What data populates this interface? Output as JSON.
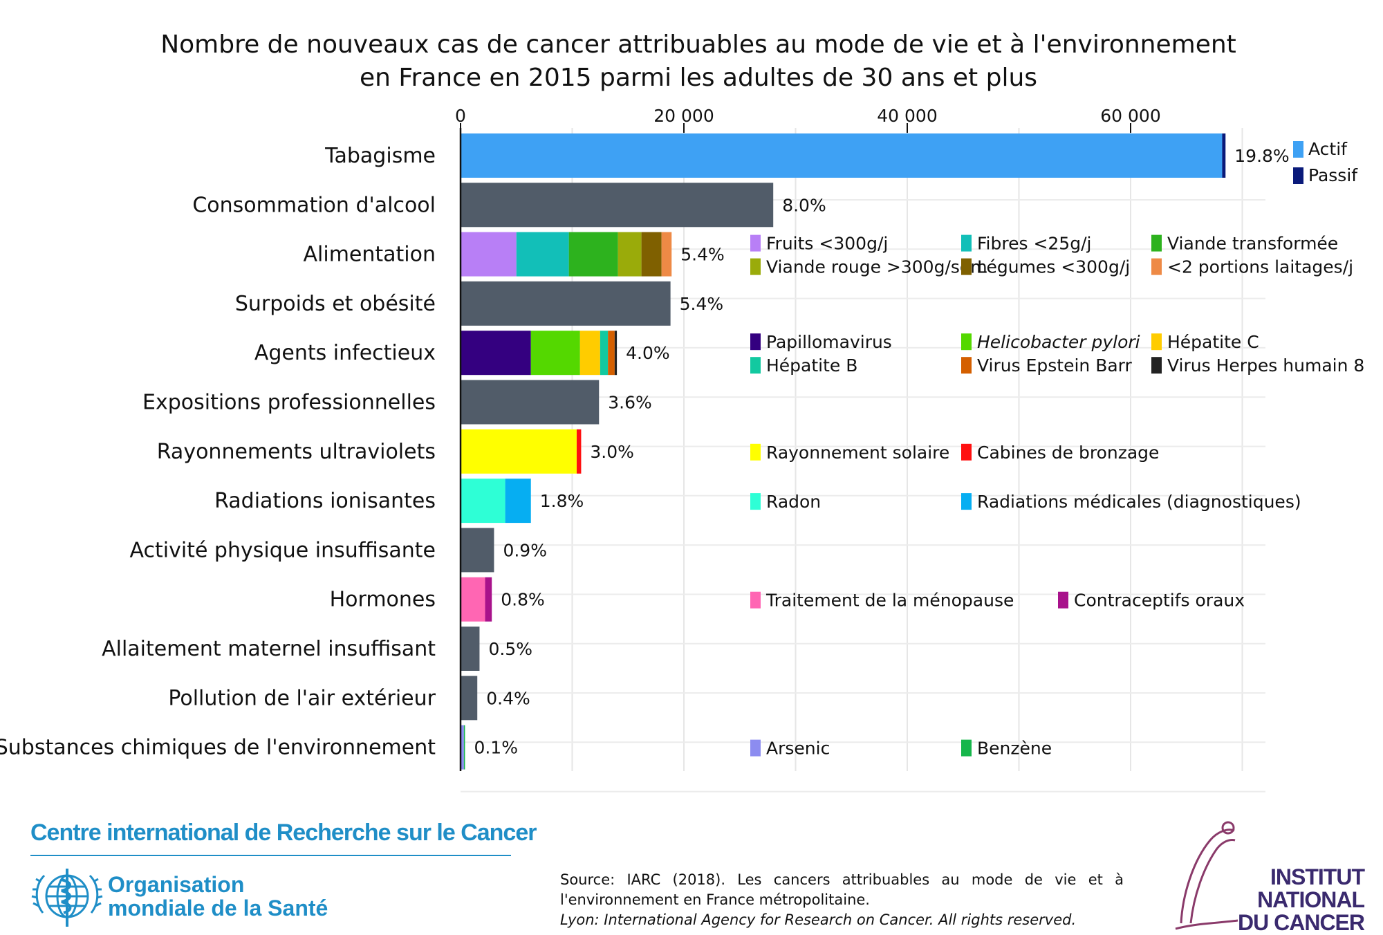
{
  "chart_data": {
    "type": "bar",
    "orientation": "horizontal",
    "stacked": true,
    "title": [
      "Nombre de nouveaux cas de cancer attribuables au mode de vie et à l'environnement",
      "en France en 2015 parmi les adultes de 30 ans et plus"
    ],
    "x_axis": {
      "position": "top",
      "range": [
        0,
        72000
      ],
      "ticks": [
        0,
        20000,
        40000,
        60000
      ],
      "tick_labels": [
        "0",
        "20 000",
        "40 000",
        "60 000"
      ],
      "grid": true
    },
    "categories": [
      {
        "label": "Tabagisme",
        "percent_label": "19.8%",
        "segments": [
          {
            "name": "Actif",
            "value": 68200,
            "color": "#3ea1f4"
          },
          {
            "name": "Passif",
            "value": 300,
            "color": "#0a1a7a"
          }
        ],
        "legend": {
          "placement": "right",
          "columns": 1,
          "items": [
            {
              "name": "Actif",
              "color": "#3ea1f4"
            },
            {
              "name": "Passif",
              "color": "#0a1a7a"
            }
          ]
        }
      },
      {
        "label": "Consommation d'alcool",
        "percent_label": "8.0%",
        "segments": [
          {
            "name": "",
            "value": 28000,
            "color": "#515c69"
          }
        ]
      },
      {
        "label": "Alimentation",
        "percent_label": "5.4%",
        "segments": [
          {
            "name": "Fruits <300g/j",
            "value": 5000,
            "color": "#b87ff6"
          },
          {
            "name": "Fibres <25g/j",
            "value": 4700,
            "color": "#12bfb8"
          },
          {
            "name": "Viande transformée",
            "value": 4400,
            "color": "#2db21e"
          },
          {
            "name": "Viande rouge >300g/sem",
            "value": 2100,
            "color": "#9aab0a"
          },
          {
            "name": "Légumes <300g/j",
            "value": 1800,
            "color": "#7f6000"
          },
          {
            "name": "<2 portions laitages/j",
            "value": 900,
            "color": "#ee8a46"
          }
        ],
        "legend": {
          "placement": "right",
          "columns": 3,
          "items": [
            {
              "name": "Fruits <300g/j",
              "color": "#b87ff6"
            },
            {
              "name": "Fibres <25g/j",
              "color": "#12bfb8"
            },
            {
              "name": "Viande transformée",
              "color": "#2db21e"
            },
            {
              "name": "Viande rouge >300g/sem",
              "color": "#9aab0a"
            },
            {
              "name": "Légumes <300g/j",
              "color": "#7f6000"
            },
            {
              "name": "<2 portions laitages/j",
              "color": "#ee8a46"
            }
          ]
        }
      },
      {
        "label": "Surpoids et obésité",
        "percent_label": "5.4%",
        "segments": [
          {
            "name": "",
            "value": 18800,
            "color": "#515c69"
          }
        ]
      },
      {
        "label": "Agents infectieux",
        "percent_label": "4.0%",
        "segments": [
          {
            "name": "Papillomavirus",
            "value": 6300,
            "color": "#340080"
          },
          {
            "name": "Helicobacter pylori",
            "value": 4400,
            "color": "#54d800"
          },
          {
            "name": "Hépatite C",
            "value": 1800,
            "color": "#ffcc00"
          },
          {
            "name": "Hépatite B",
            "value": 700,
            "color": "#12c9a0"
          },
          {
            "name": "Virus Epstein Barr",
            "value": 600,
            "color": "#d45f00"
          },
          {
            "name": "Virus Herpes humain 8",
            "value": 200,
            "color": "#222222"
          }
        ],
        "legend": {
          "placement": "right",
          "columns": 3,
          "items": [
            {
              "name": "Papillomavirus",
              "color": "#340080"
            },
            {
              "name": "Helicobacter pylori",
              "color": "#54d800",
              "italic": true
            },
            {
              "name": "Hépatite C",
              "color": "#ffcc00"
            },
            {
              "name": "Hépatite B",
              "color": "#12c9a0"
            },
            {
              "name": "Virus Epstein Barr",
              "color": "#d45f00"
            },
            {
              "name": "Virus Herpes humain 8",
              "color": "#222222"
            }
          ]
        }
      },
      {
        "label": "Expositions professionnelles",
        "percent_label": "3.6%",
        "segments": [
          {
            "name": "",
            "value": 12400,
            "color": "#515c69"
          }
        ]
      },
      {
        "label": "Rayonnements ultraviolets",
        "percent_label": "3.0%",
        "segments": [
          {
            "name": "Rayonnement solaire",
            "value": 10400,
            "color": "#ffff00"
          },
          {
            "name": "Cabines de bronzage",
            "value": 400,
            "color": "#ff1010"
          }
        ],
        "legend": {
          "placement": "right",
          "columns": 2,
          "items": [
            {
              "name": "Rayonnement solaire",
              "color": "#ffff00"
            },
            {
              "name": "Cabines de bronzage",
              "color": "#ff1010"
            }
          ]
        }
      },
      {
        "label": "Radiations ionisantes",
        "percent_label": "1.8%",
        "segments": [
          {
            "name": "Radon",
            "value": 4000,
            "color": "#2effd6"
          },
          {
            "name": "Radiations médicales (diagnostiques)",
            "value": 2300,
            "color": "#06aef2"
          }
        ],
        "legend": {
          "placement": "right",
          "columns": 2,
          "items": [
            {
              "name": "Radon",
              "color": "#2effd6"
            },
            {
              "name": "Radiations médicales (diagnostiques)",
              "color": "#06aef2"
            }
          ]
        }
      },
      {
        "label": "Activité physique insuffisante",
        "percent_label": "0.9%",
        "segments": [
          {
            "name": "",
            "value": 3000,
            "color": "#515c69"
          }
        ]
      },
      {
        "label": "Hormones",
        "percent_label": "0.8%",
        "segments": [
          {
            "name": "Traitement de la ménopause",
            "value": 2200,
            "color": "#ff66b3"
          },
          {
            "name": "Contraceptifs oraux",
            "value": 600,
            "color": "#a8128b"
          }
        ],
        "legend": {
          "placement": "right",
          "columns": 2,
          "items": [
            {
              "name": "Traitement de la ménopause",
              "color": "#ff66b3"
            },
            {
              "name": "Contraceptifs oraux",
              "color": "#a8128b"
            }
          ]
        }
      },
      {
        "label": "Allaitement maternel insuffisant",
        "percent_label": "0.5%",
        "segments": [
          {
            "name": "",
            "value": 1700,
            "color": "#515c69"
          }
        ]
      },
      {
        "label": "Pollution de l'air extérieur",
        "percent_label": "0.4%",
        "segments": [
          {
            "name": "",
            "value": 1500,
            "color": "#515c69"
          }
        ]
      },
      {
        "label": "Substances chimiques de l'environnement",
        "percent_label": "0.1%",
        "segments": [
          {
            "name": "Arsenic",
            "value": 300,
            "color": "#8c8cf0"
          },
          {
            "name": "Benzène",
            "value": 100,
            "color": "#16b64b"
          }
        ],
        "legend": {
          "placement": "right",
          "columns": 2,
          "items": [
            {
              "name": "Arsenic",
              "color": "#8c8cf0"
            },
            {
              "name": "Benzène",
              "color": "#16b64b"
            }
          ]
        }
      }
    ]
  },
  "footer": {
    "organization": "Centre international de Recherche sur le Cancer",
    "who_name": [
      "Organisation",
      "mondiale de la Santé"
    ],
    "source_line1": "Source: IARC (2018). Les cancers attribuables au mode de vie et à l'environnement en France métropolitaine.",
    "source_line2": "Lyon: International Agency for Research on Cancer. All rights reserved.",
    "institute": [
      "INSTITUT",
      "NATIONAL",
      "DU CANCER"
    ],
    "brand_colors": {
      "iarc_blue": "#1f8ec7",
      "inca_purple": "#3a2a6e",
      "inca_swoosh": "#8a3a6a"
    }
  }
}
